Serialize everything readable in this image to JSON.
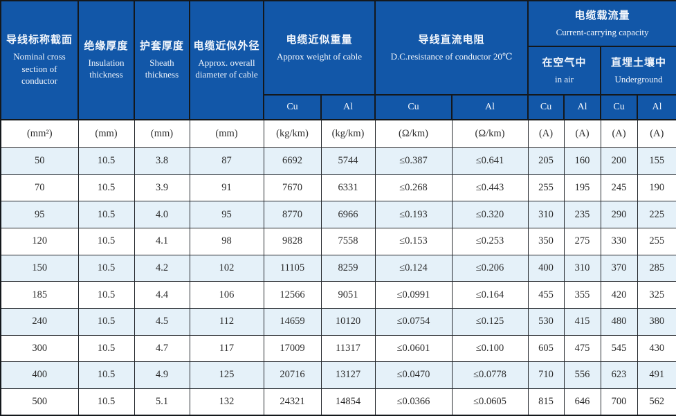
{
  "table": {
    "header": {
      "nominal": {
        "zh": "导线标称截面",
        "en": "Nominal cross section of conductor"
      },
      "insulation": {
        "zh": "绝缘厚度",
        "en": "Insulation thickness"
      },
      "sheath": {
        "zh": "护套厚度",
        "en": "Sheath thickness"
      },
      "diameter": {
        "zh": "电缆近似外径",
        "en": "Approx. overall diameter of cable"
      },
      "weight": {
        "zh": "电缆近似重量",
        "en": "Approx weight of cable"
      },
      "resistance": {
        "zh": "导线直流电阻",
        "en": "D.C.resistance of conductor 20℃"
      },
      "capacity": {
        "zh": "电缆载流量",
        "en": "Current-carrying capacity"
      },
      "in_air": {
        "zh": "在空气中",
        "en": "in air"
      },
      "underground": {
        "zh": "直埋土壤中",
        "en": "Underground"
      },
      "metals": [
        "Cu",
        "Al",
        "Cu",
        "Al",
        "Cu",
        "Al",
        "Cu",
        "Al"
      ]
    },
    "units": [
      "(mm²)",
      "(mm)",
      "(mm)",
      "(mm)",
      "(kg/km)",
      "(kg/km)",
      "(Ω/km)",
      "(Ω/km)",
      "(A)",
      "(A)",
      "(A)",
      "(A)"
    ],
    "rows": [
      [
        "50",
        "10.5",
        "3.8",
        "87",
        "6692",
        "5744",
        "≤0.387",
        "≤0.641",
        "205",
        "160",
        "200",
        "155"
      ],
      [
        "70",
        "10.5",
        "3.9",
        "91",
        "7670",
        "6331",
        "≤0.268",
        "≤0.443",
        "255",
        "195",
        "245",
        "190"
      ],
      [
        "95",
        "10.5",
        "4.0",
        "95",
        "8770",
        "6966",
        "≤0.193",
        "≤0.320",
        "310",
        "235",
        "290",
        "225"
      ],
      [
        "120",
        "10.5",
        "4.1",
        "98",
        "9828",
        "7558",
        "≤0.153",
        "≤0.253",
        "350",
        "275",
        "330",
        "255"
      ],
      [
        "150",
        "10.5",
        "4.2",
        "102",
        "11105",
        "8259",
        "≤0.124",
        "≤0.206",
        "400",
        "310",
        "370",
        "285"
      ],
      [
        "185",
        "10.5",
        "4.4",
        "106",
        "12566",
        "9051",
        "≤0.0991",
        "≤0.164",
        "455",
        "355",
        "420",
        "325"
      ],
      [
        "240",
        "10.5",
        "4.5",
        "112",
        "14659",
        "10120",
        "≤0.0754",
        "≤0.125",
        "530",
        "415",
        "480",
        "380"
      ],
      [
        "300",
        "10.5",
        "4.7",
        "117",
        "17009",
        "11317",
        "≤0.0601",
        "≤0.100",
        "605",
        "475",
        "545",
        "430"
      ],
      [
        "400",
        "10.5",
        "4.9",
        "125",
        "20716",
        "13127",
        "≤0.0470",
        "≤0.0778",
        "710",
        "556",
        "623",
        "491"
      ],
      [
        "500",
        "10.5",
        "5.1",
        "132",
        "24321",
        "14854",
        "≤0.0366",
        "≤0.0605",
        "815",
        "646",
        "700",
        "562"
      ]
    ]
  },
  "colors": {
    "header_bg": "#1257a8",
    "header_text": "#f2f6fc",
    "row_tint": "#e5f1f9",
    "border": "#14181c"
  }
}
